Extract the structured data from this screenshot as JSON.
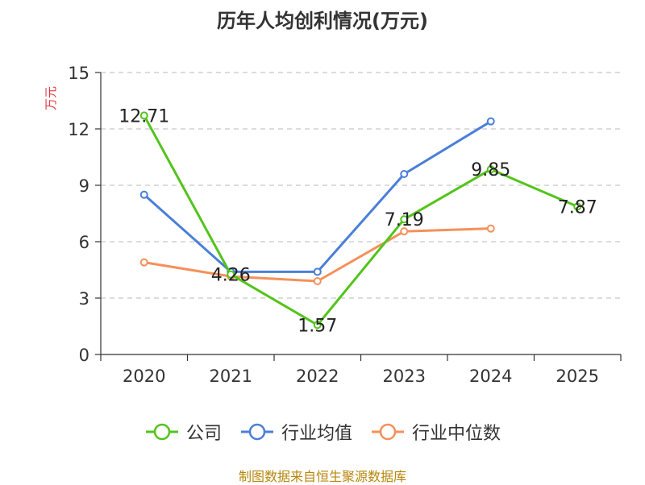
{
  "chart_data": {
    "type": "line",
    "title": "历年人均创利情况(万元)",
    "ylabel": "万元",
    "xlabel": "",
    "categories": [
      "2020",
      "2021",
      "2022",
      "2023",
      "2024",
      "2025"
    ],
    "ylim": [
      0,
      15
    ],
    "yticks": [
      0,
      3,
      6,
      9,
      12,
      15
    ],
    "grid": true,
    "legend_position": "bottom",
    "series": [
      {
        "name": "公司",
        "color": "#52c41a",
        "values": [
          12.71,
          4.26,
          1.57,
          7.19,
          9.85,
          7.87
        ],
        "labels": [
          "12.71",
          "4.26",
          "1.57",
          "7.19",
          "9.85",
          "7.87"
        ]
      },
      {
        "name": "行业均值",
        "color": "#4a7fd9",
        "values": [
          8.5,
          4.4,
          4.4,
          9.6,
          12.4,
          null
        ]
      },
      {
        "name": "行业中位数",
        "color": "#f5905a",
        "values": [
          4.9,
          4.15,
          3.9,
          6.55,
          6.7,
          null
        ]
      }
    ]
  },
  "footer": {
    "source": "制图数据来自恒生聚源数据库"
  }
}
